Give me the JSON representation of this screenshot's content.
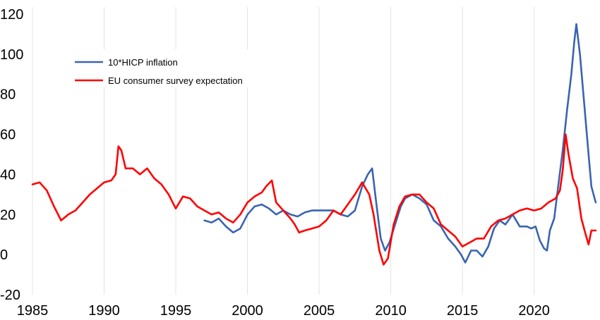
{
  "chart_data": {
    "type": "line",
    "title": "",
    "xlabel": "",
    "ylabel": "",
    "xlim": [
      1985,
      2024.5
    ],
    "ylim": [
      -20,
      120
    ],
    "grid": "vertical",
    "legend_position": "top-left",
    "x_ticks": [
      1985,
      1990,
      1995,
      2000,
      2005,
      2010,
      2015,
      2020
    ],
    "x_tick_labels": [
      "1985",
      "1990",
      "1995",
      "2000",
      "2005",
      "2010",
      "2015",
      "2020"
    ],
    "y_ticks": [
      -20,
      0,
      20,
      40,
      60,
      80,
      100,
      120
    ],
    "y_tick_labels": [
      "-20",
      "0",
      "20",
      "40",
      "60",
      "80",
      "100",
      "120"
    ],
    "series": [
      {
        "name": "10*HICP inflation",
        "color": "#3a64b0",
        "x": [
          1997.0,
          1997.5,
          1998.0,
          1998.5,
          1999.0,
          1999.5,
          2000.0,
          2000.5,
          2001.0,
          2001.5,
          2002.0,
          2002.5,
          2003.0,
          2003.5,
          2004.0,
          2004.5,
          2005.0,
          2005.5,
          2006.0,
          2006.5,
          2007.0,
          2007.5,
          2008.0,
          2008.4,
          2008.7,
          2009.0,
          2009.3,
          2009.6,
          2009.9,
          2010.3,
          2010.7,
          2011.0,
          2011.5,
          2012.0,
          2012.5,
          2013.0,
          2013.5,
          2014.0,
          2014.5,
          2014.9,
          2015.2,
          2015.6,
          2016.0,
          2016.4,
          2016.8,
          2017.2,
          2017.6,
          2018.0,
          2018.5,
          2019.0,
          2019.5,
          2019.8,
          2020.1,
          2020.4,
          2020.7,
          2020.9,
          2021.1,
          2021.4,
          2021.7,
          2022.0,
          2022.3,
          2022.6,
          2022.8,
          2022.95,
          2023.2,
          2023.5,
          2023.8,
          2024.0,
          2024.3
        ],
        "values": [
          17,
          16,
          18,
          14,
          11,
          13,
          20,
          24,
          25,
          23,
          20,
          22,
          20,
          19,
          21,
          22,
          22,
          22,
          22,
          20,
          19,
          22,
          34,
          40,
          43,
          25,
          8,
          2,
          6,
          15,
          24,
          28,
          30,
          28,
          25,
          17,
          14,
          8,
          4,
          0,
          -4,
          2,
          2,
          -1,
          4,
          13,
          17,
          15,
          20,
          14,
          14,
          13,
          14,
          7,
          3,
          2,
          12,
          18,
          35,
          52,
          72,
          90,
          106,
          115,
          100,
          75,
          50,
          34,
          26
        ]
      },
      {
        "name": "EU consumer survey expectation",
        "color": "#ff0000",
        "x": [
          1985.0,
          1985.5,
          1986.0,
          1986.5,
          1987.0,
          1987.5,
          1988.0,
          1988.5,
          1989.0,
          1989.5,
          1990.0,
          1990.5,
          1990.8,
          1991.0,
          1991.2,
          1991.5,
          1992.0,
          1992.5,
          1993.0,
          1993.5,
          1994.0,
          1994.5,
          1995.0,
          1995.5,
          1996.0,
          1996.5,
          1997.0,
          1997.5,
          1998.0,
          1998.5,
          1999.0,
          1999.5,
          2000.0,
          2000.5,
          2001.0,
          2001.3,
          2001.7,
          2002.0,
          2002.5,
          2003.0,
          2003.3,
          2003.6,
          2004.0,
          2004.5,
          2005.0,
          2005.5,
          2006.0,
          2006.5,
          2007.0,
          2007.5,
          2008.0,
          2008.5,
          2008.8,
          2009.2,
          2009.5,
          2009.8,
          2010.2,
          2010.6,
          2011.0,
          2011.5,
          2012.0,
          2012.5,
          2013.0,
          2013.5,
          2014.0,
          2014.5,
          2015.0,
          2015.5,
          2016.0,
          2016.5,
          2017.0,
          2017.5,
          2018.0,
          2018.5,
          2019.0,
          2019.5,
          2020.0,
          2020.5,
          2021.0,
          2021.5,
          2021.8,
          2022.0,
          2022.2,
          2022.4,
          2022.7,
          2023.0,
          2023.3,
          2023.6,
          2023.8,
          2024.0,
          2024.3
        ],
        "values": [
          35,
          36,
          32,
          24,
          17,
          20,
          22,
          26,
          30,
          33,
          36,
          37,
          40,
          54,
          52,
          43,
          43,
          40,
          43,
          38,
          35,
          30,
          23,
          29,
          28,
          24,
          22,
          20,
          21,
          18,
          16,
          20,
          26,
          29,
          31,
          34,
          37,
          26,
          22,
          18,
          15,
          11,
          12,
          13,
          14,
          17,
          22,
          20,
          25,
          30,
          36,
          30,
          20,
          2,
          -5,
          -2,
          15,
          24,
          29,
          30,
          30,
          26,
          23,
          15,
          12,
          9,
          4,
          6,
          8,
          8,
          14,
          17,
          18,
          20,
          22,
          23,
          22,
          23,
          26,
          28,
          32,
          42,
          60,
          50,
          38,
          33,
          18,
          10,
          5,
          12,
          12
        ]
      }
    ]
  }
}
